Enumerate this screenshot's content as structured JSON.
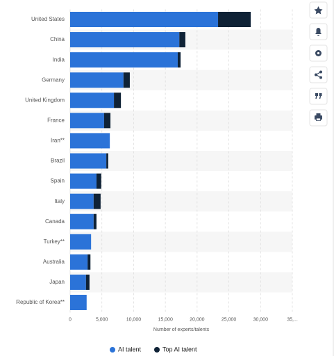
{
  "chart_data": {
    "type": "stacked_hbar",
    "categories": [
      "United States",
      "China",
      "India",
      "Germany",
      "United Kingdom",
      "France",
      "Iran**",
      "Brazil",
      "Spain",
      "Italy",
      "Canada",
      "Turkey**",
      "Australia",
      "Japan",
      "Republic of Korea**"
    ],
    "series": [
      {
        "name": "AI talent",
        "color": "#2b73d8",
        "values": [
          23300,
          17200,
          16950,
          8400,
          6900,
          5350,
          6250,
          5700,
          4150,
          3700,
          3700,
          3300,
          2750,
          2500,
          2600
        ]
      },
      {
        "name": "Top AI talent",
        "color": "#0f2236",
        "values": [
          5150,
          950,
          450,
          1000,
          1100,
          1000,
          0,
          300,
          750,
          1100,
          450,
          0,
          450,
          550,
          0
        ]
      }
    ],
    "xlabel": "Number of experts/talents",
    "xlim": [
      0,
      35000
    ],
    "xticks": [
      0,
      {
        "value": 5000,
        "label": "5,000"
      },
      {
        "value": 10000,
        "label": "10,000"
      },
      {
        "value": 15000,
        "label": "15,000"
      },
      {
        "value": 20000,
        "label": "20,000"
      },
      {
        "value": 25000,
        "label": "25,000"
      },
      {
        "value": 30000,
        "label": "30,000"
      },
      {
        "value": 35000,
        "label": "35,..."
      }
    ],
    "grid": true,
    "legend": "bottom"
  }
}
